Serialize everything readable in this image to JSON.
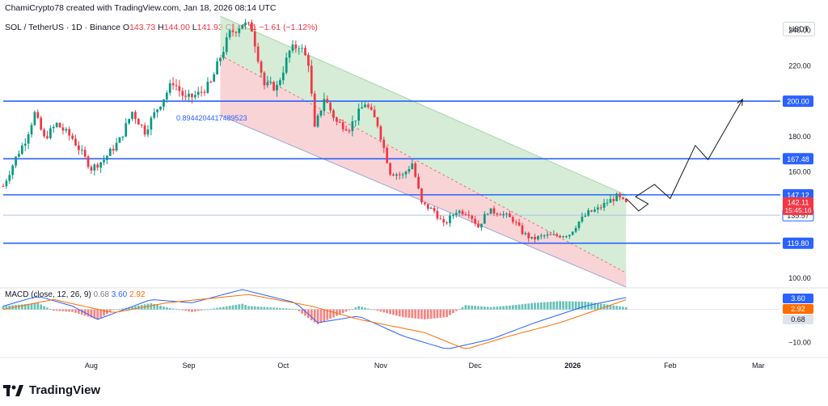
{
  "credit": "ChamiCrypto78 created with TradingView.com, Jan 18, 2026 08:14 UTC",
  "legend": {
    "symbol": "SOL / TetherUS · 1D · Binance",
    "open_label": "O",
    "open": "143.73",
    "high_label": "H",
    "high": "144.00",
    "low_label": "L",
    "low": "141.93",
    "close_label": "C",
    "close": "142.11",
    "change": "−1.61 (−1.12%)"
  },
  "unit_badge": "USDT",
  "macd_legend": {
    "label": "MACD (close, 12, 26, 9)",
    "hist": "0.68",
    "macd": "3.60",
    "signal": "2.92"
  },
  "footer_brand": "TradingView",
  "colors": {
    "up": "#089981",
    "down": "#f23645",
    "level_line": "#2962ff",
    "channel_upper_fill": "#c8e6c9",
    "channel_lower_fill": "#f8c9cc",
    "macd_line": "#2962ff",
    "signal_line": "#ff6d00"
  },
  "chart_data": {
    "type": "candlestick",
    "symbol": "SOL / TetherUS",
    "timeframe": "1D",
    "exchange": "Binance",
    "y_range": [
      95,
      248
    ],
    "x_range": [
      "2025-07-04",
      "2026-03-08"
    ],
    "y_ticks": [
      "100.00",
      "120.00",
      "140.00",
      "160.00",
      "180.00",
      "200.00",
      "220.00",
      "240.00"
    ],
    "x_ticks": [
      {
        "date": "2025-08-01",
        "label": "Aug"
      },
      {
        "date": "2025-09-01",
        "label": "Sep"
      },
      {
        "date": "2025-10-01",
        "label": "Oct"
      },
      {
        "date": "2025-11-01",
        "label": "Nov"
      },
      {
        "date": "2025-12-01",
        "label": "Dec"
      },
      {
        "date": "2026-01-01",
        "label": "2026"
      },
      {
        "date": "2026-02-01",
        "label": "Feb"
      },
      {
        "date": "2026-03-01",
        "label": "Mar"
      }
    ],
    "price_anchors": [
      {
        "date": "2025-07-04",
        "price": 152
      },
      {
        "date": "2025-07-08",
        "price": 168
      },
      {
        "date": "2025-07-11",
        "price": 178
      },
      {
        "date": "2025-07-14",
        "price": 193
      },
      {
        "date": "2025-07-17",
        "price": 179
      },
      {
        "date": "2025-07-21",
        "price": 187
      },
      {
        "date": "2025-07-26",
        "price": 179
      },
      {
        "date": "2025-08-01",
        "price": 162
      },
      {
        "date": "2025-08-05",
        "price": 167
      },
      {
        "date": "2025-08-10",
        "price": 178
      },
      {
        "date": "2025-08-14",
        "price": 194
      },
      {
        "date": "2025-08-18",
        "price": 183
      },
      {
        "date": "2025-08-22",
        "price": 196
      },
      {
        "date": "2025-08-27",
        "price": 211
      },
      {
        "date": "2025-08-31",
        "price": 201
      },
      {
        "date": "2025-09-04",
        "price": 204
      },
      {
        "date": "2025-09-08",
        "price": 210
      },
      {
        "date": "2025-09-11",
        "price": 225
      },
      {
        "date": "2025-09-14",
        "price": 238
      },
      {
        "date": "2025-09-18",
        "price": 244
      },
      {
        "date": "2025-09-21",
        "price": 241
      },
      {
        "date": "2025-09-25",
        "price": 209
      },
      {
        "date": "2025-09-29",
        "price": 208
      },
      {
        "date": "2025-10-03",
        "price": 228
      },
      {
        "date": "2025-10-06",
        "price": 232
      },
      {
        "date": "2025-10-09",
        "price": 222
      },
      {
        "date": "2025-10-11",
        "price": 184
      },
      {
        "date": "2025-10-14",
        "price": 202
      },
      {
        "date": "2025-10-18",
        "price": 188
      },
      {
        "date": "2025-10-22",
        "price": 185
      },
      {
        "date": "2025-10-27",
        "price": 199
      },
      {
        "date": "2025-10-31",
        "price": 187
      },
      {
        "date": "2025-11-04",
        "price": 160
      },
      {
        "date": "2025-11-08",
        "price": 158
      },
      {
        "date": "2025-11-11",
        "price": 165
      },
      {
        "date": "2025-11-14",
        "price": 142
      },
      {
        "date": "2025-11-18",
        "price": 138
      },
      {
        "date": "2025-11-21",
        "price": 130
      },
      {
        "date": "2025-11-25",
        "price": 138
      },
      {
        "date": "2025-11-29",
        "price": 137
      },
      {
        "date": "2025-12-02",
        "price": 129
      },
      {
        "date": "2025-12-05",
        "price": 138
      },
      {
        "date": "2025-12-09",
        "price": 137
      },
      {
        "date": "2025-12-13",
        "price": 133
      },
      {
        "date": "2025-12-16",
        "price": 126
      },
      {
        "date": "2025-12-19",
        "price": 122
      },
      {
        "date": "2025-12-23",
        "price": 124
      },
      {
        "date": "2025-12-27",
        "price": 124
      },
      {
        "date": "2025-12-31",
        "price": 125
      },
      {
        "date": "2026-01-03",
        "price": 132
      },
      {
        "date": "2026-01-06",
        "price": 137
      },
      {
        "date": "2026-01-09",
        "price": 139
      },
      {
        "date": "2026-01-12",
        "price": 143
      },
      {
        "date": "2026-01-15",
        "price": 146
      },
      {
        "date": "2026-01-18",
        "price": 142
      }
    ],
    "channel": {
      "upper": [
        {
          "date": "2025-09-11",
          "price": 250
        },
        {
          "date": "2026-01-18",
          "price": 147
        }
      ],
      "mid": [
        {
          "date": "2025-09-11",
          "price": 226
        },
        {
          "date": "2026-01-18",
          "price": 103
        }
      ],
      "lower": [
        {
          "date": "2025-09-11",
          "price": 192
        },
        {
          "date": "2026-01-18",
          "price": 85
        }
      ],
      "annotation": "0.8944204417489523",
      "annotation_anchor": {
        "date": "2025-08-28",
        "price": 189
      }
    },
    "levels": [
      {
        "price": 200.0,
        "label": "200.00"
      },
      {
        "price": 167.48,
        "label": "167.48"
      },
      {
        "price": 147.12,
        "label": "147.12"
      },
      {
        "price": 119.8,
        "label": "119.80"
      }
    ],
    "light_level": {
      "price": 135.57,
      "label": "135.57"
    },
    "current_price": {
      "price": 142.11,
      "label": "142.11",
      "countdown": "15:45:16"
    },
    "projection": [
      {
        "date": "2026-01-18",
        "price": 145
      },
      {
        "date": "2026-01-22",
        "price": 138
      },
      {
        "date": "2026-01-25",
        "price": 142
      },
      {
        "date": "2026-01-21",
        "price": 146
      },
      {
        "date": "2026-01-27",
        "price": 153
      },
      {
        "date": "2026-02-01",
        "price": 145
      },
      {
        "date": "2026-02-09",
        "price": 175
      },
      {
        "date": "2026-02-13",
        "price": 167
      },
      {
        "date": "2026-02-24",
        "price": 201
      }
    ],
    "macd": {
      "y_range": [
        -14,
        6
      ],
      "y_ticks": [
        "−10.00"
      ],
      "badges": [
        {
          "value": 3.6,
          "label": "3.60"
        },
        {
          "value": 2.92,
          "label": "2.92"
        },
        {
          "value": 0.68,
          "label": "0.68"
        }
      ],
      "macd_anchors": [
        {
          "date": "2025-07-04",
          "price": 1
        },
        {
          "date": "2025-07-15",
          "price": 4
        },
        {
          "date": "2025-07-26",
          "price": 1
        },
        {
          "date": "2025-08-03",
          "price": -3
        },
        {
          "date": "2025-08-20",
          "price": 3
        },
        {
          "date": "2025-09-02",
          "price": 2
        },
        {
          "date": "2025-09-18",
          "price": 6
        },
        {
          "date": "2025-10-05",
          "price": 2
        },
        {
          "date": "2025-10-12",
          "price": -4
        },
        {
          "date": "2025-10-25",
          "price": -2
        },
        {
          "date": "2025-11-08",
          "price": -8
        },
        {
          "date": "2025-11-22",
          "price": -12
        },
        {
          "date": "2025-12-06",
          "price": -9
        },
        {
          "date": "2025-12-20",
          "price": -4
        },
        {
          "date": "2026-01-05",
          "price": 1
        },
        {
          "date": "2026-01-18",
          "price": 3.6
        }
      ],
      "signal_anchors": [
        {
          "date": "2025-07-04",
          "price": 0
        },
        {
          "date": "2025-07-20",
          "price": 3
        },
        {
          "date": "2025-08-08",
          "price": -1
        },
        {
          "date": "2025-08-25",
          "price": 2
        },
        {
          "date": "2025-09-20",
          "price": 4.5
        },
        {
          "date": "2025-10-10",
          "price": 1
        },
        {
          "date": "2025-10-25",
          "price": -3
        },
        {
          "date": "2025-11-15",
          "price": -7
        },
        {
          "date": "2025-11-28",
          "price": -12
        },
        {
          "date": "2025-12-12",
          "price": -8
        },
        {
          "date": "2025-12-28",
          "price": -4
        },
        {
          "date": "2026-01-18",
          "price": 2.92
        }
      ]
    }
  }
}
